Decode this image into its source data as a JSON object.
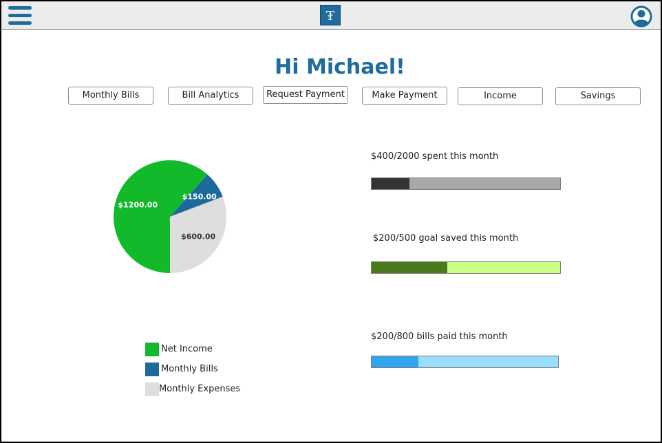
{
  "header": {
    "menu_icon": "hamburger-menu-icon",
    "logo_glyph": "₮",
    "logo_icon": "app-logo-icon",
    "profile_icon": "user-profile-icon"
  },
  "greeting": "Hi Michael!",
  "nav_buttons": [
    "Monthly Bills",
    "Bill Analytics",
    "Request Payment",
    "Make Payment",
    "Income",
    "Savings"
  ],
  "chart_data": {
    "type": "pie",
    "slices": [
      {
        "label": "Net Income",
        "value": 1200,
        "display": "$1200.00",
        "color": "#12b92b"
      },
      {
        "label": "Monthly Bills",
        "value": 150,
        "display": "$150.00",
        "color": "#1c6a9c"
      },
      {
        "label": "Monthly Expenses",
        "value": 600,
        "display": "$600.00",
        "color": "#dedede"
      }
    ],
    "legend": [
      "Net Income",
      "Monthly Bills",
      "Monthly Expenses"
    ]
  },
  "stats": [
    {
      "label": "$400/2000 spent this month",
      "current": 400,
      "total": 2000,
      "fill_color": "#333333",
      "track_color": "#a8a8a8"
    },
    {
      "label": "$200/500 goal saved this month",
      "current": 200,
      "total": 500,
      "fill_color": "#4a7a1c",
      "track_color": "#ccff88"
    },
    {
      "label": "$200/800 bills paid this month",
      "current": 200,
      "total": 800,
      "fill_color": "#33a5f0",
      "track_color": "#99ddff"
    }
  ]
}
